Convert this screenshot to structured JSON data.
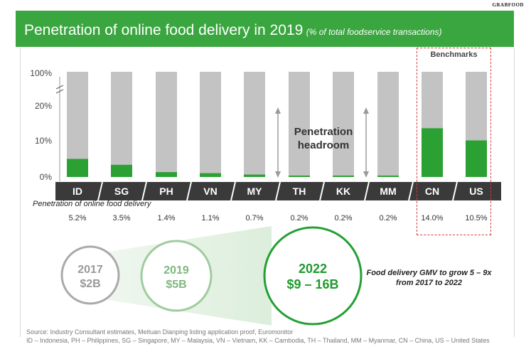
{
  "brand": "GRABFOOD",
  "title": "Penetration of online food delivery in 2019",
  "subtitle": "(% of total foodservice transactions)",
  "benchmarks_label": "Benchmarks",
  "penetration_row_label": "Penetration of online food delivery",
  "headroom_label": [
    "Penetration",
    "headroom"
  ],
  "colors": {
    "banner": "#3aa63f",
    "bar_fill": "#2ba033",
    "bar_bg": "#c3c3c3",
    "category_bar": "#3a3a3a",
    "dashed": "#d83a3a"
  },
  "chart_data": {
    "type": "bar",
    "categories": [
      "ID",
      "SG",
      "PH",
      "VN",
      "MY",
      "TH",
      "KK",
      "MM",
      "CN",
      "US"
    ],
    "values": [
      5.2,
      3.5,
      1.4,
      1.1,
      0.7,
      0.2,
      0.2,
      0.2,
      14.0,
      10.5
    ],
    "value_labels": [
      "5.2%",
      "3.5%",
      "1.4%",
      "1.1%",
      "0.7%",
      "0.2%",
      "0.2%",
      "0.2%",
      "14.0%",
      "10.5%"
    ],
    "y_ticks": [
      "0%",
      "10%",
      "20%",
      "100%"
    ],
    "axis_break": true,
    "ylim": [
      0,
      100
    ],
    "benchmarks": [
      "CN",
      "US"
    ]
  },
  "gmv": {
    "circles": [
      {
        "year": "2017",
        "value": "$2B"
      },
      {
        "year": "2019",
        "value": "$5B"
      },
      {
        "year": "2022",
        "value": "$9 – 16B"
      }
    ],
    "note": [
      "Food delivery GMV to grow 5 – 9x",
      "from 2017 to 2022"
    ]
  },
  "source": [
    "Source: Industry Consultant estimates, Meituan Dianping listing application proof, Euromonitor",
    "ID – Indonesia, PH – Philippines, SG – Singapore, MY – Malaysia, VN – Vietnam, KK – Cambodia, TH – Thailand, MM – Myanmar, CN – China, US – United States"
  ]
}
